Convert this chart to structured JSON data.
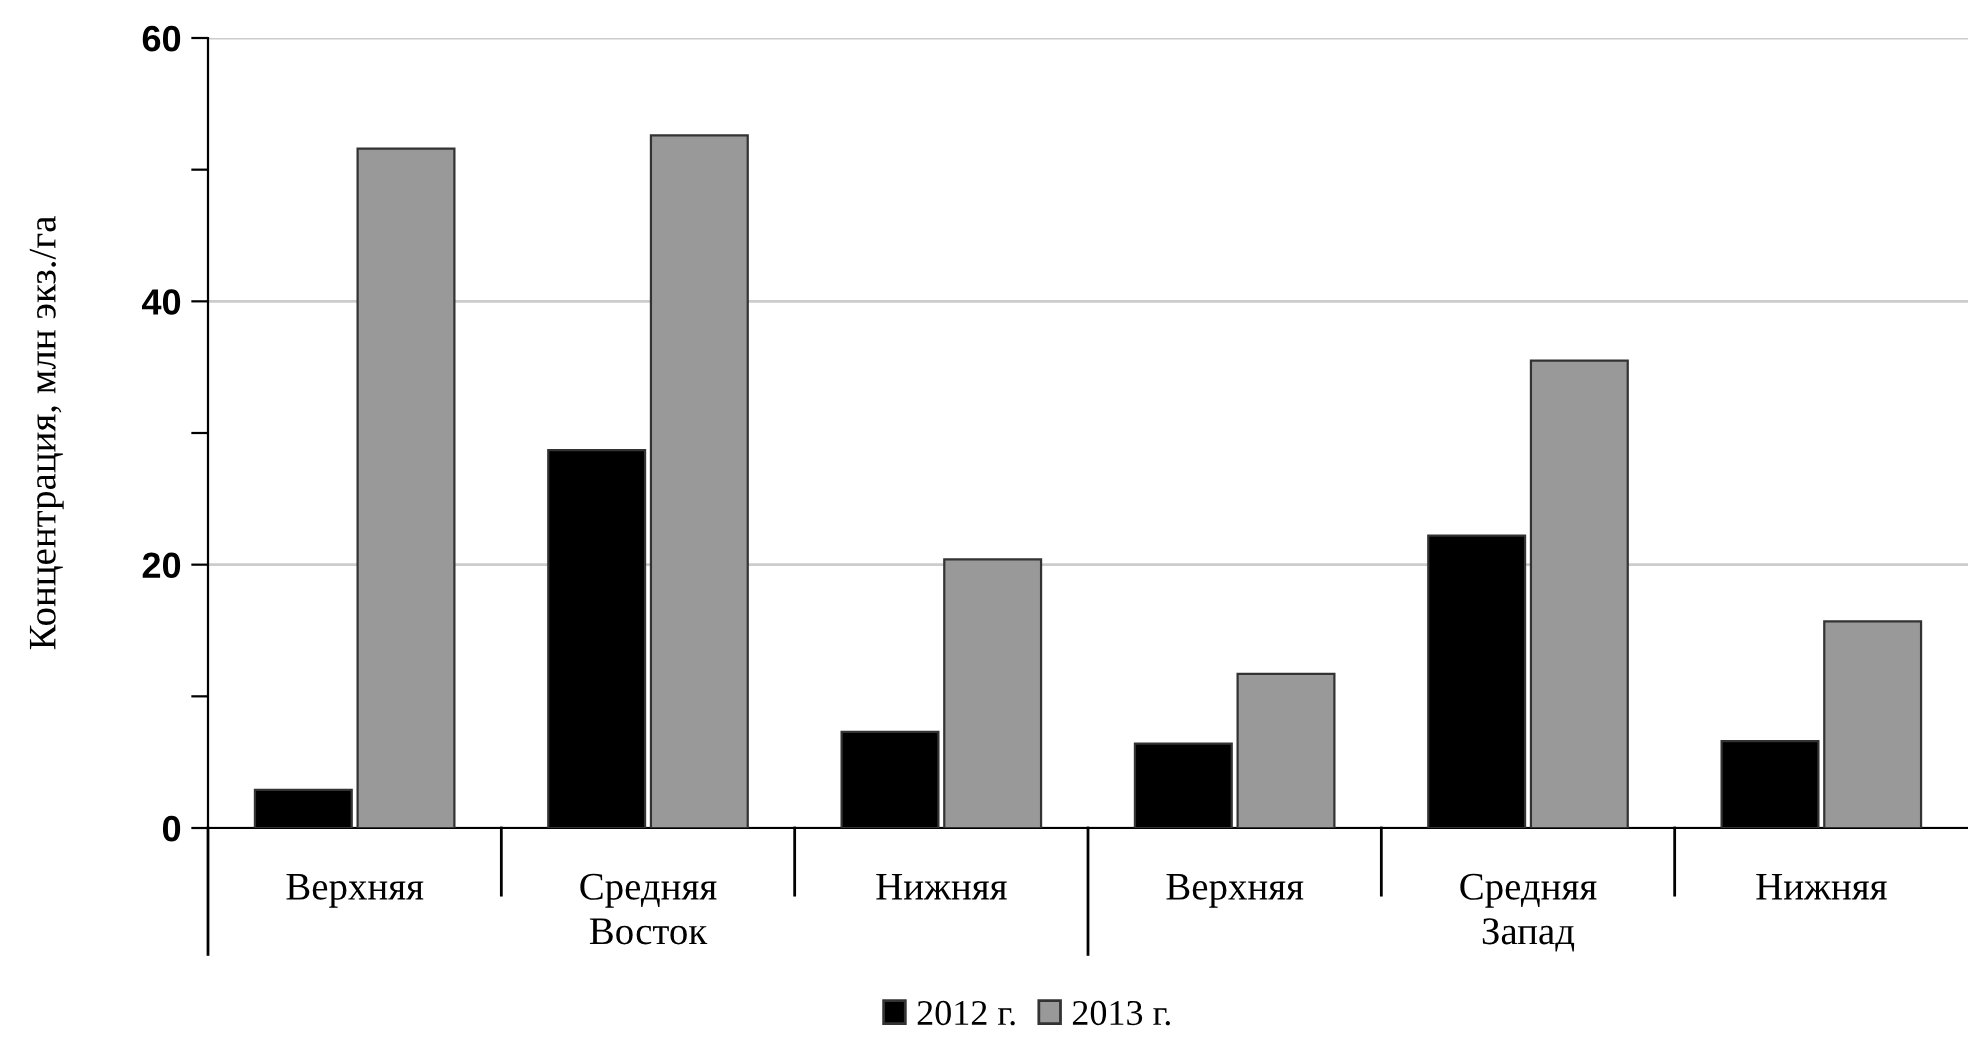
{
  "chart_data": {
    "type": "bar",
    "ylabel": "Концентрация, млн экз./га",
    "categories": [
      "Верхняя",
      "Средняя",
      "Нижняя",
      "Верхняя",
      "Средняя",
      "Нижняя"
    ],
    "series": [
      {
        "name": "2012 г.",
        "color": "#000000",
        "values": [
          2.9,
          28.7,
          7.3,
          6.4,
          22.2,
          6.6
        ]
      },
      {
        "name": "2013 г.",
        "color": "#999999",
        "values": [
          51.6,
          52.6,
          20.4,
          11.7,
          35.5,
          15.7
        ]
      }
    ],
    "annotations": [
      "Восток",
      "Запад"
    ],
    "ylim": [
      0,
      60
    ],
    "yticks": [
      0,
      {
        "value": 10,
        "label": null
      },
      20,
      {
        "value": 30,
        "label": null
      },
      40,
      {
        "value": 50,
        "label": null
      },
      60
    ],
    "grid": "y",
    "legend": "bottom"
  }
}
